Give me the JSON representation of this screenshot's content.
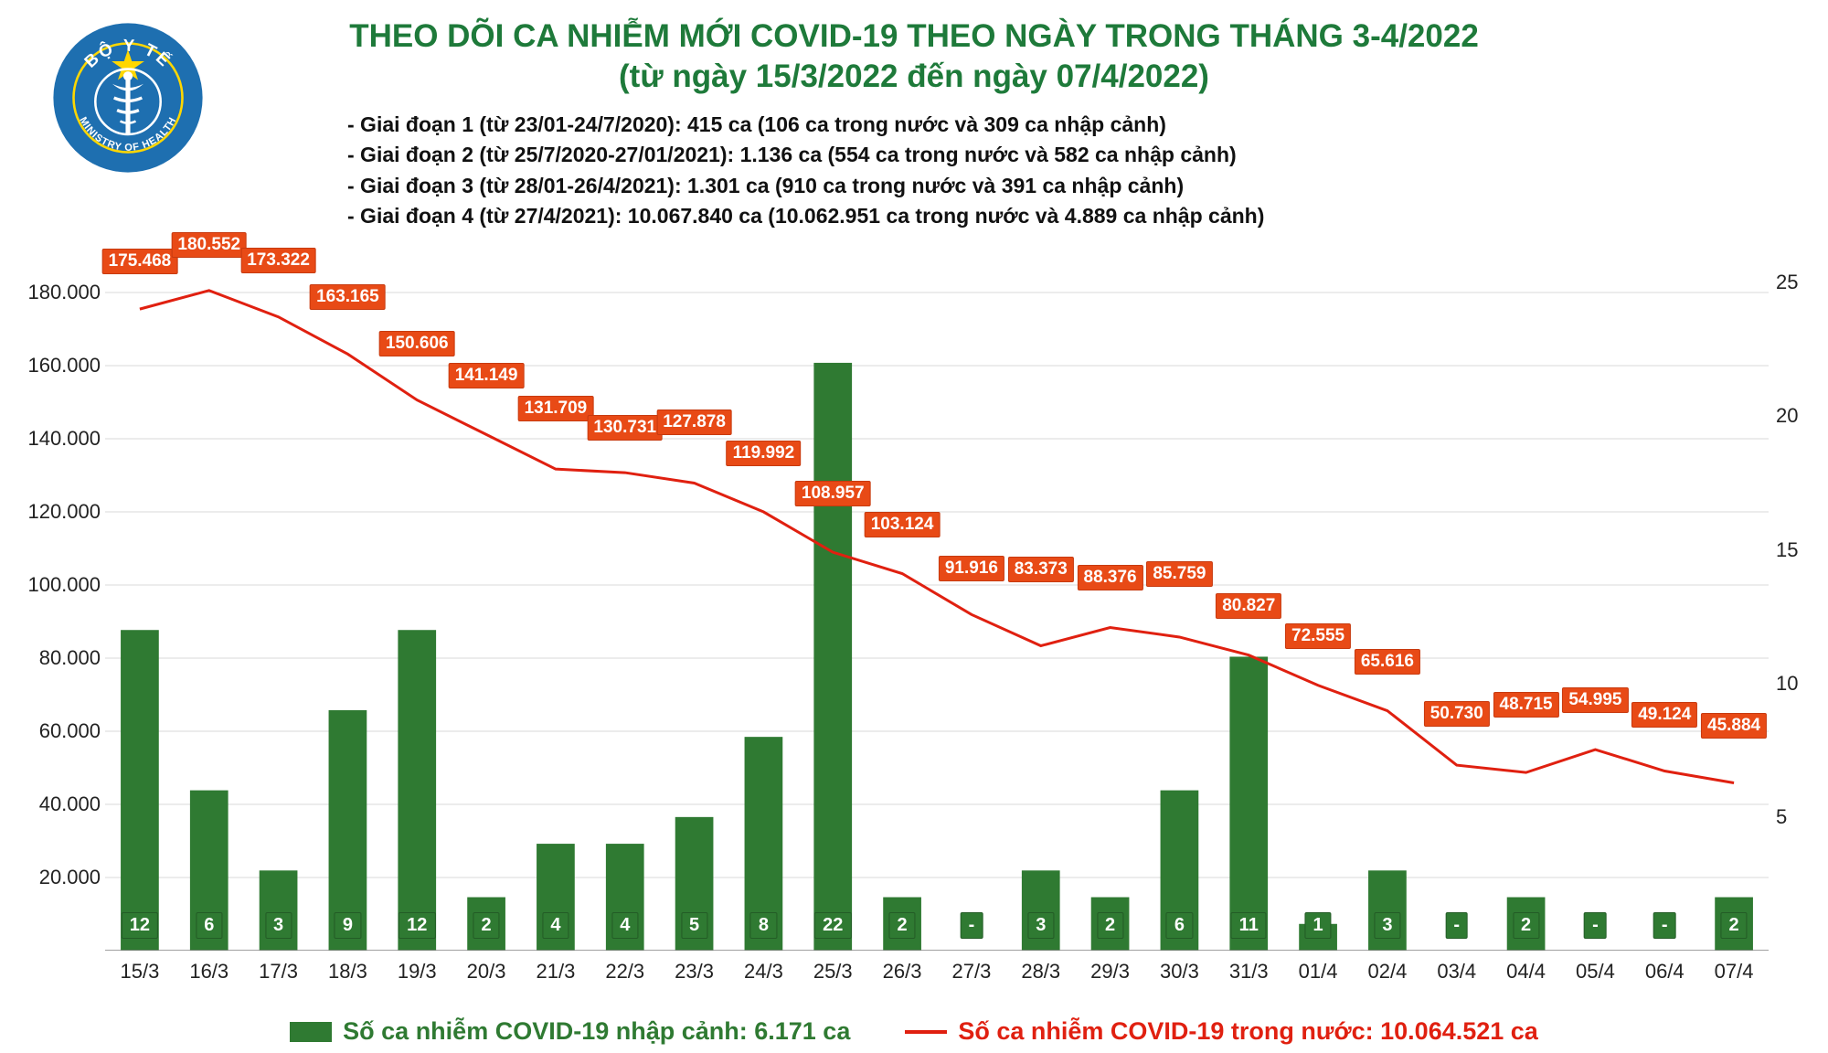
{
  "title": {
    "line1": "THEO DÕI CA NHIỄM MỚI COVID-19 THEO NGÀY TRONG THÁNG 3-4/2022",
    "line2": "(từ ngày 15/3/2022 đến ngày 07/4/2022)",
    "fontsize": 35,
    "color": "#1e7a3a"
  },
  "annotations": [
    "- Giai đoạn 1 (từ 23/01-24/7/2020): 415 ca (106 ca trong nước và 309 ca nhập cảnh)",
    "- Giai đoạn 2 (từ 25/7/2020-27/01/2021): 1.136 ca (554 ca trong nước và 582 ca nhập cảnh)",
    "- Giai đoạn 3 (từ 28/01-26/4/2021): 1.301 ca (910 ca trong nước và 391 ca nhập cảnh)",
    "- Giai đoạn 4 (từ 27/4/2021): 10.067.840 ca (10.062.951 ca trong nước và 4.889 ca nhập cảnh)"
  ],
  "chart": {
    "type": "bar+line",
    "background_color": "#ffffff",
    "grid_color": "#d9d9d9",
    "categories": [
      "15/3",
      "16/3",
      "17/3",
      "18/3",
      "19/3",
      "20/3",
      "21/3",
      "22/3",
      "23/3",
      "24/3",
      "25/3",
      "26/3",
      "27/3",
      "28/3",
      "29/3",
      "30/3",
      "31/3",
      "01/4",
      "02/4",
      "03/4",
      "04/4",
      "05/4",
      "06/4",
      "07/4"
    ],
    "bars": {
      "name": "Số ca nhiễm COVID-19 nhập cảnh",
      "total_label": "Số ca nhiễm COVID-19 nhập cảnh: 6.171 ca",
      "values": [
        12,
        6,
        3,
        9,
        12,
        2,
        4,
        4,
        5,
        8,
        22,
        2,
        null,
        3,
        2,
        6,
        11,
        1,
        3,
        null,
        2,
        null,
        null,
        2
      ],
      "color": "#2f7a32",
      "label_bg": "#2f7a32",
      "bar_width": 0.55,
      "y_axis": "right",
      "y_max_right": 26,
      "y_ticks_right": [
        5,
        10,
        15,
        20,
        25
      ]
    },
    "line": {
      "name": "Số ca nhiễm COVID-19 trong nước",
      "total_label": "Số ca nhiễm COVID-19 trong nước: 10.064.521 ca",
      "values": [
        175468,
        180552,
        173322,
        163165,
        150606,
        141149,
        131709,
        130731,
        127878,
        119992,
        108957,
        103124,
        91916,
        83373,
        88376,
        85759,
        80827,
        72555,
        65616,
        50730,
        48715,
        54995,
        49124,
        45884
      ],
      "labels": [
        "175.468",
        "180.552",
        "173.322",
        "163.165",
        "150.606",
        "141.149",
        "131.709",
        "130.731",
        "127.878",
        "119.992",
        "108.957",
        "103.124",
        "91.916",
        "83.373",
        "88.376",
        "85.759",
        "80.827",
        "72.555",
        "65.616",
        "50.730",
        "48.715",
        "54.995",
        "49.124",
        "45.884"
      ],
      "color": "#e02010",
      "label_bg": "#e84a16",
      "line_width": 3,
      "y_axis": "left",
      "y_max_left": 190000,
      "y_ticks_left": [
        20000,
        40000,
        60000,
        80000,
        100000,
        120000,
        140000,
        160000,
        180000
      ],
      "y_tick_labels_left": [
        "20.000",
        "40.000",
        "60.000",
        "80.000",
        "100.000",
        "120.000",
        "140.000",
        "160.000",
        "180.000"
      ]
    },
    "label_offsets_line": [
      38,
      36,
      48,
      48,
      48,
      50,
      52,
      35,
      52,
      50,
      50,
      40,
      36,
      70,
      40,
      55,
      40,
      40,
      40,
      42,
      60,
      40,
      48,
      48
    ]
  },
  "logo": {
    "outer_color": "#1e6fb0",
    "ring_color": "#ffd700",
    "star_color": "#ffd700",
    "staff_color": "#ffffff",
    "top_text": "BỘ Y TẾ",
    "bottom_text": "MINISTRY OF HEALTH"
  }
}
